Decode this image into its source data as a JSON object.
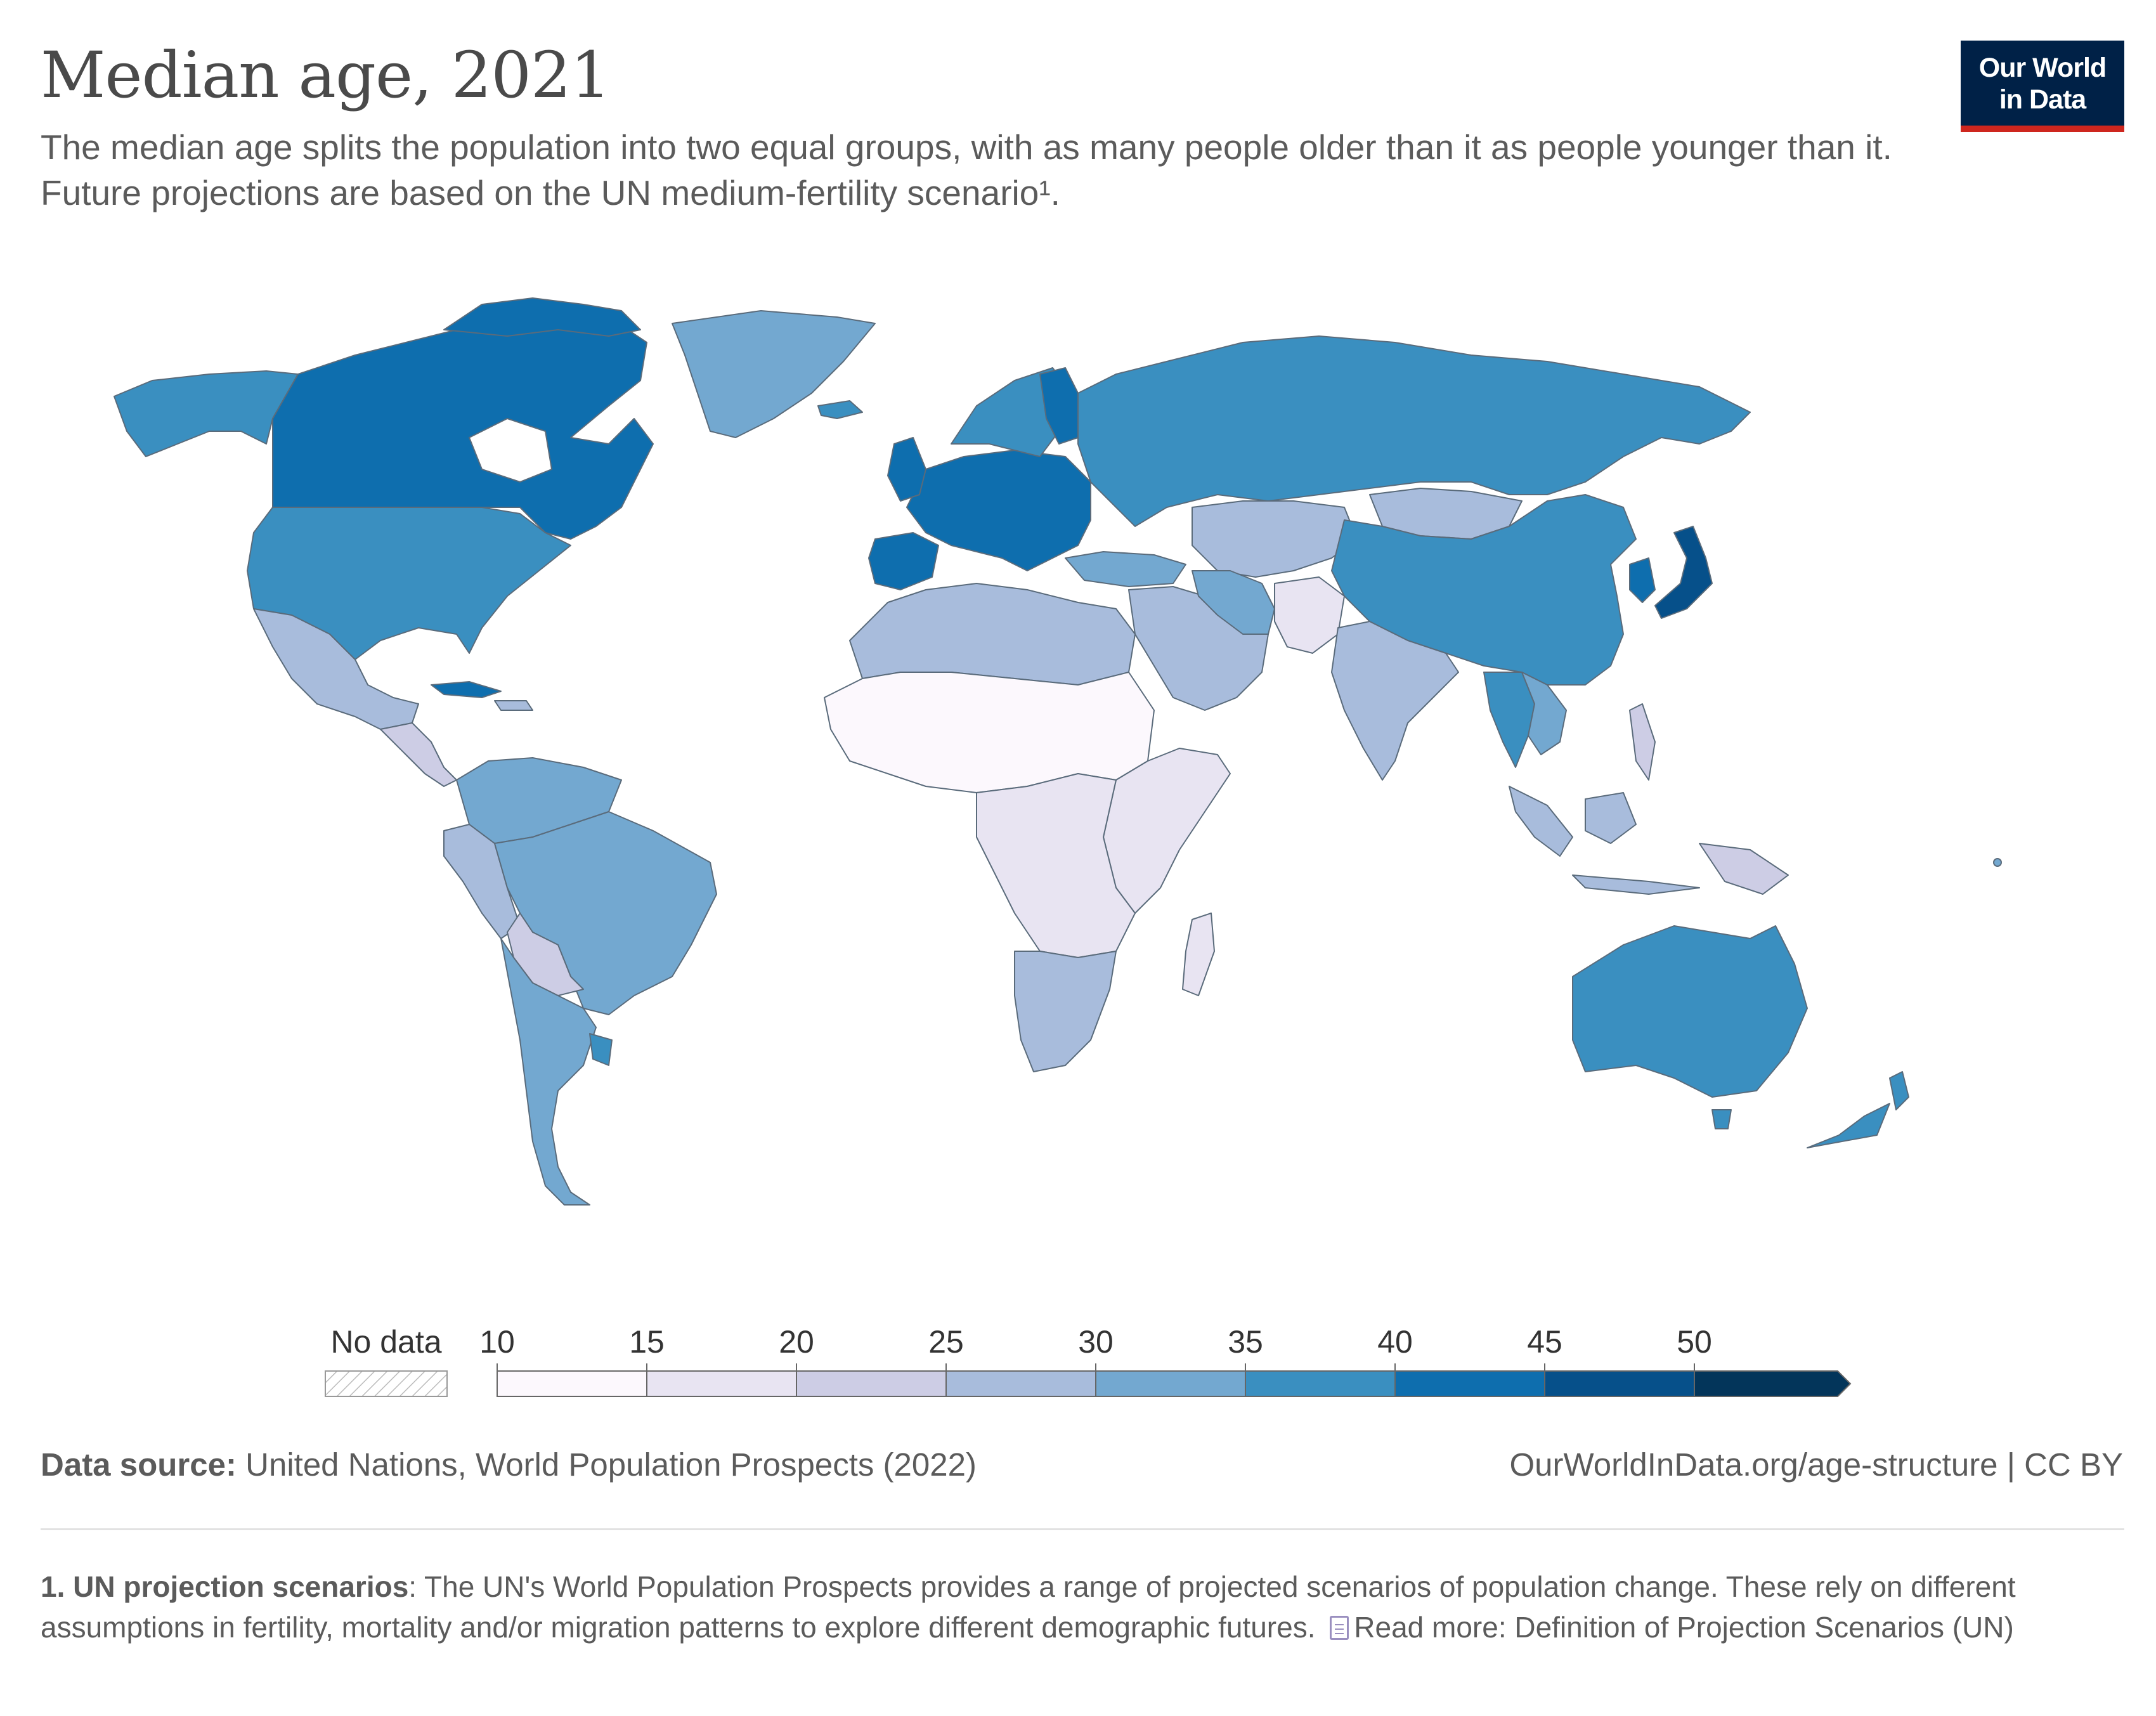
{
  "title": "Median age, 2021",
  "subtitle": "The median age splits the population into two equal groups, with as many people older than it as people younger than it. Future projections are based on the UN medium-fertility scenario¹.",
  "logo": {
    "line1": "Our World",
    "line2": "in Data",
    "bg_color": "#002147",
    "accent_color": "#ce261e"
  },
  "legend": {
    "no_data_label": "No data",
    "ticks": [
      "10",
      "15",
      "20",
      "25",
      "30",
      "35",
      "40",
      "45",
      "50"
    ],
    "bins": [
      {
        "from": 10,
        "to": 15,
        "color": "#fcf8fd"
      },
      {
        "from": 15,
        "to": 20,
        "color": "#e8e4f2"
      },
      {
        "from": 20,
        "to": 25,
        "color": "#cdcde5"
      },
      {
        "from": 25,
        "to": 30,
        "color": "#a8bcdc"
      },
      {
        "from": 30,
        "to": 35,
        "color": "#73a8d0"
      },
      {
        "from": 35,
        "to": 40,
        "color": "#3a8fc0"
      },
      {
        "from": 40,
        "to": 45,
        "color": "#0e6eae"
      },
      {
        "from": 45,
        "to": 50,
        "color": "#06508a"
      },
      {
        "from": 50,
        "to": null,
        "color": "#03355a"
      }
    ]
  },
  "chart_data": {
    "type": "choropleth",
    "variable": "Median age",
    "year": 2021,
    "regions": [
      {
        "name": "Canada",
        "bin": "40-45"
      },
      {
        "name": "Alaska (USA)",
        "bin": "35-40"
      },
      {
        "name": "United States",
        "bin": "35-40"
      },
      {
        "name": "Greenland",
        "bin": "30-35"
      },
      {
        "name": "Mexico",
        "bin": "25-30"
      },
      {
        "name": "Central America",
        "bin": "20-25"
      },
      {
        "name": "Cuba",
        "bin": "40-45"
      },
      {
        "name": "Colombia / Venezuela",
        "bin": "30-35"
      },
      {
        "name": "Brazil",
        "bin": "30-35"
      },
      {
        "name": "Bolivia",
        "bin": "20-25"
      },
      {
        "name": "Peru",
        "bin": "25-30"
      },
      {
        "name": "Argentina",
        "bin": "30-35"
      },
      {
        "name": "Uruguay",
        "bin": "35-40"
      },
      {
        "name": "Western Europe",
        "bin": "40-45"
      },
      {
        "name": "Scandinavia",
        "bin": "35-40"
      },
      {
        "name": "Russia",
        "bin": "35-40"
      },
      {
        "name": "Turkey",
        "bin": "30-35"
      },
      {
        "name": "Central Asia",
        "bin": "25-30"
      },
      {
        "name": "Mongolia",
        "bin": "25-30"
      },
      {
        "name": "China",
        "bin": "35-40"
      },
      {
        "name": "Japan",
        "bin": "45-50"
      },
      {
        "name": "South Korea",
        "bin": "40-45"
      },
      {
        "name": "Thailand",
        "bin": "35-40"
      },
      {
        "name": "India",
        "bin": "25-30"
      },
      {
        "name": "Middle East",
        "bin": "25-30"
      },
      {
        "name": "North Africa",
        "bin": "25-30"
      },
      {
        "name": "Sub-Saharan Africa",
        "bin": "15-20"
      },
      {
        "name": "Sahel",
        "bin": "10-15"
      },
      {
        "name": "Southern Africa",
        "bin": "25-30"
      },
      {
        "name": "Madagascar",
        "bin": "15-20"
      },
      {
        "name": "Indonesia",
        "bin": "25-30"
      },
      {
        "name": "Papua New Guinea",
        "bin": "20-25"
      },
      {
        "name": "Australia",
        "bin": "35-40"
      },
      {
        "name": "New Zealand",
        "bin": "35-40"
      }
    ]
  },
  "source": {
    "label": "Data source:",
    "text": "United Nations, World Population Prospects (2022)"
  },
  "url": "OurWorldInData.org/age-structure | CC BY",
  "footnote": {
    "label": "1. UN projection scenarios",
    "text": ": The UN's World Population Prospects provides a range of projected scenarios of population change. These rely on different assumptions in fertility, mortality and/or migration patterns to explore different demographic futures.",
    "read_more": "Read more: Definition of Projection Scenarios (UN)"
  }
}
